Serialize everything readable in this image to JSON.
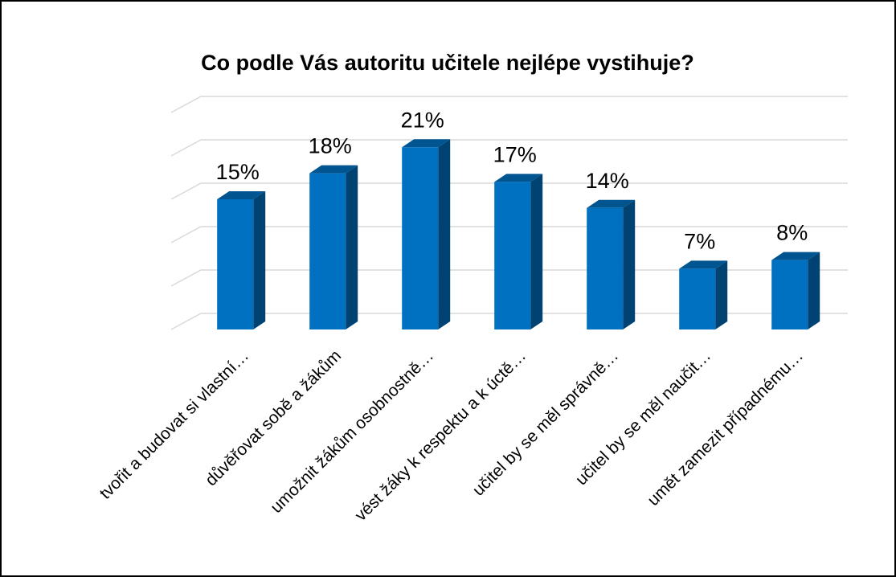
{
  "chart_data": {
    "type": "bar3d",
    "title": "Co podle Vás autoritu učitele nejlépe vystihuje?",
    "categories": [
      "tvořit a budovat si vlastní…",
      "důvěřovat sobě a žákům",
      "umožnit žákům osobnostně…",
      "vést žáky k respektu a k úctě…",
      "učitel by se měl správně…",
      "učitel by se měl naučit…",
      "umět zamezit případnému…"
    ],
    "values": [
      15,
      18,
      21,
      17,
      14,
      7,
      8
    ],
    "value_labels": [
      "15%",
      "18%",
      "21%",
      "17%",
      "14%",
      "7%",
      "8%"
    ],
    "color": "#0070c0",
    "ylim": [
      0,
      25
    ],
    "yticks": [
      0,
      5,
      10,
      15,
      20,
      25
    ],
    "grid": true
  }
}
